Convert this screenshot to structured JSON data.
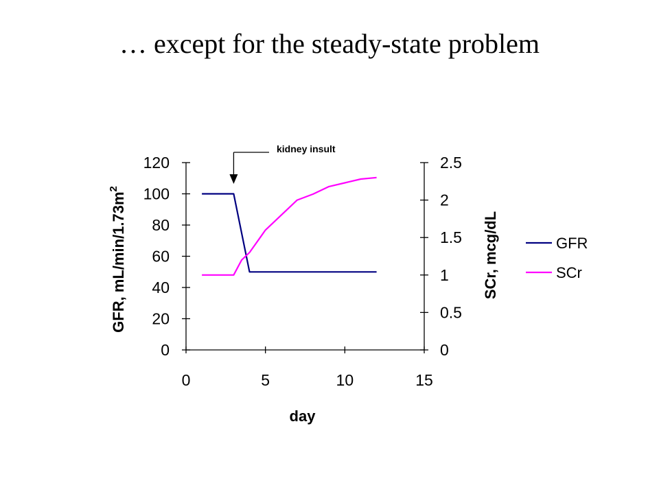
{
  "slide": {
    "title": "… except for the steady-state problem"
  },
  "chart_data": {
    "type": "line",
    "xlabel": "day",
    "ylabel_left": "GFR, mL/min/1.73m",
    "ylabel_left_sup": "2",
    "ylabel_right": "SCr, mcg/dL",
    "xlim": [
      0,
      15
    ],
    "ylim_left": [
      0,
      120
    ],
    "ylim_right": [
      0,
      2.5
    ],
    "x_ticks": [
      "0",
      "5",
      "10",
      "15"
    ],
    "y_left_ticks": [
      "0",
      "20",
      "40",
      "60",
      "80",
      "100",
      "120"
    ],
    "y_right_ticks": [
      "0",
      "0.5",
      "1",
      "1.5",
      "2",
      "2.5"
    ],
    "grid": false,
    "legend_position": "right",
    "annotation": {
      "text": "kidney insult",
      "x": 3
    },
    "series": [
      {
        "name": "GFR",
        "axis": "left",
        "color": "#000080",
        "x": [
          1,
          2,
          3,
          4,
          5,
          6,
          7,
          8,
          9,
          10,
          11,
          12
        ],
        "values": [
          100,
          100,
          100,
          50,
          50,
          50,
          50,
          50,
          50,
          50,
          50,
          50
        ]
      },
      {
        "name": "SCr",
        "axis": "right",
        "color": "#ff00ff",
        "x": [
          1,
          2,
          3,
          3.5,
          4,
          5,
          6,
          7,
          8,
          9,
          10,
          11,
          12
        ],
        "values": [
          1.0,
          1.0,
          1.0,
          1.2,
          1.3,
          1.6,
          1.8,
          2.0,
          2.08,
          2.18,
          2.23,
          2.28,
          2.3
        ]
      }
    ]
  }
}
